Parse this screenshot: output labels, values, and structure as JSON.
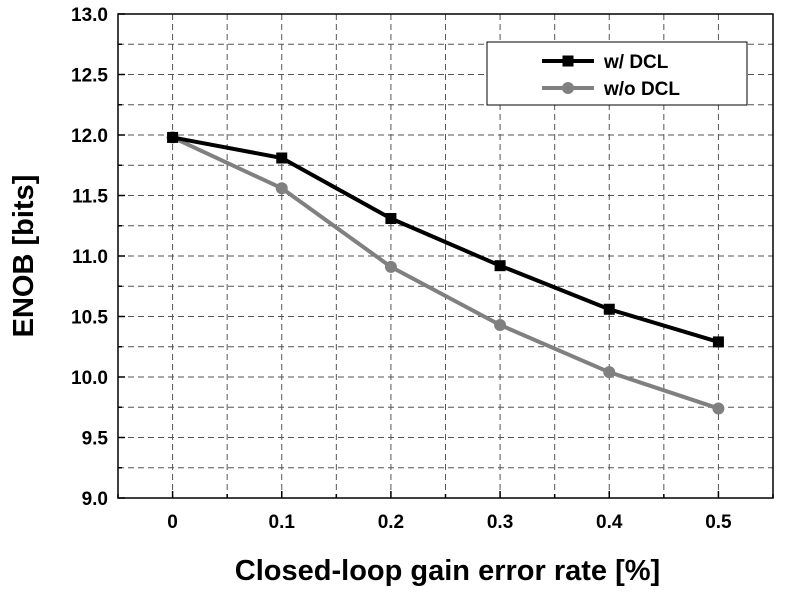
{
  "chart_data": {
    "type": "line",
    "title": "",
    "xlabel": "Closed-loop gain error rate [%]",
    "ylabel": "ENOB [bits]",
    "xlim": [
      -0.05,
      0.55
    ],
    "ylim": [
      9.0,
      13.0
    ],
    "x_ticks": [
      0,
      0.1,
      0.2,
      0.3,
      0.4,
      0.5
    ],
    "x_tick_labels": [
      "0",
      "0.1",
      "0.2",
      "0.3",
      "0.4",
      "0.5"
    ],
    "y_ticks": [
      9.0,
      9.5,
      10.0,
      10.5,
      11.0,
      11.5,
      12.0,
      12.5,
      13.0
    ],
    "y_tick_labels": [
      "9.0",
      "9.5",
      "10.0",
      "10.5",
      "11.0",
      "11.5",
      "12.0",
      "12.5",
      "13.0"
    ],
    "grid": true,
    "legend_position": "top-right",
    "x": [
      0,
      0.1,
      0.2,
      0.3,
      0.4,
      0.5
    ],
    "series": [
      {
        "name": "w/ DCL",
        "values": [
          11.98,
          11.81,
          11.31,
          10.92,
          10.56,
          10.29
        ],
        "color": "#000000",
        "marker": "square"
      },
      {
        "name": "w/o DCL",
        "values": [
          11.98,
          11.56,
          10.91,
          10.43,
          10.04,
          9.74
        ],
        "color": "#808080",
        "marker": "circle"
      }
    ]
  }
}
